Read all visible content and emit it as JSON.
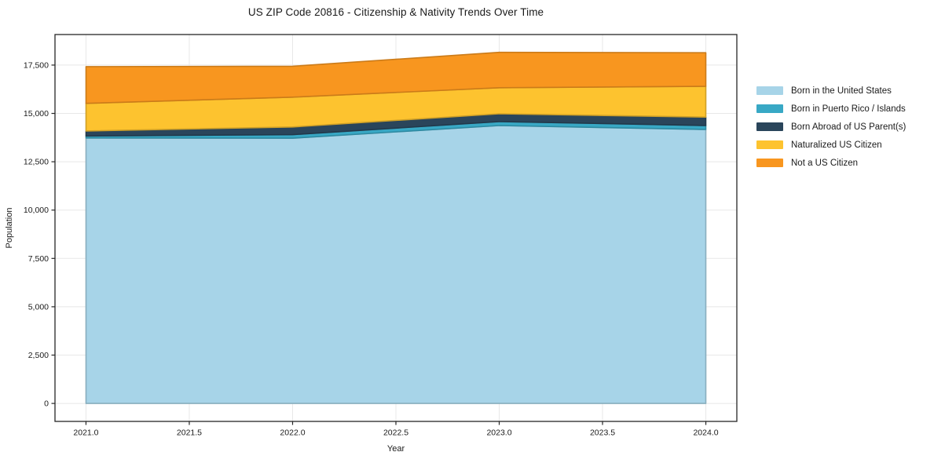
{
  "title": "US ZIP Code 20816 - Citizenship & Nativity Trends Over Time",
  "chart_data": {
    "type": "area",
    "stacked": true,
    "title": "US ZIP Code 20816 - Citizenship & Nativity Trends Over Time",
    "xlabel": "Year",
    "ylabel": "Population",
    "x": [
      2021,
      2022,
      2023,
      2024
    ],
    "series": [
      {
        "name": "Born in the United States",
        "color": "#a7d4e8",
        "values": [
          13730,
          13720,
          14370,
          14170
        ]
      },
      {
        "name": "Born in Puerto Rico / Islands",
        "color": "#38a8c5",
        "values": [
          100,
          180,
          210,
          200
        ]
      },
      {
        "name": "Born Abroad of US Parent(s)",
        "color": "#2a455b",
        "values": [
          260,
          400,
          400,
          440
        ]
      },
      {
        "name": "Naturalized US Citizen",
        "color": "#fdc32f",
        "values": [
          1430,
          1540,
          1350,
          1590
        ]
      },
      {
        "name": "Not a US Citizen",
        "color": "#f8961f",
        "values": [
          1900,
          1600,
          1830,
          1740
        ]
      }
    ],
    "stack_totals": [
      17420,
      17440,
      18160,
      18140
    ],
    "xtick_labels": [
      "2021.0",
      "2021.5",
      "2022.0",
      "2022.5",
      "2023.0",
      "2023.5",
      "2024.0"
    ],
    "xtick_values": [
      2021,
      2021.5,
      2022,
      2022.5,
      2023,
      2023.5,
      2024
    ],
    "ytick_labels": [
      "0",
      "2,500",
      "5,000",
      "7,500",
      "10,000",
      "12,500",
      "15,000",
      "17,500"
    ],
    "ytick_values": [
      0,
      2500,
      5000,
      7500,
      10000,
      12500,
      15000,
      17500
    ],
    "xlim": [
      2020.85,
      2024.15
    ],
    "ylim": [
      -930,
      19080
    ],
    "grid": true,
    "grid_color": "#e8e8e8",
    "spine_color": "#262626",
    "text_color": "#1a1a1a",
    "legend_position": "right"
  }
}
